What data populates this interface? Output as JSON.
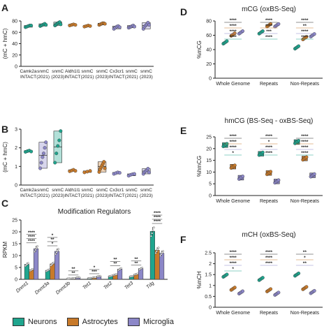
{
  "legend": {
    "items": [
      {
        "label": "Neurons",
        "color": "#1fa58e"
      },
      {
        "label": "Astrocytes",
        "color": "#c87a2a"
      },
      {
        "label": "Microglia",
        "color": "#8c87c8"
      }
    ]
  },
  "chart_data": [
    {
      "panel": "A",
      "type": "scatter",
      "ylabel": "(mC + hmC)",
      "ylim": [
        0,
        80
      ],
      "yticks": [
        0,
        20,
        40,
        60,
        80
      ],
      "categories": [
        {
          "label": [
            "Camk2a",
            "INTACT"
          ],
          "color": "#1fa58e",
          "mean": 71,
          "points": [
            69,
            70,
            71,
            72,
            72
          ]
        },
        {
          "label": [
            "snmC",
            "(2021)"
          ],
          "color": "#1fa58e",
          "mean": 73,
          "points": [
            71,
            72,
            73,
            74,
            75,
            73
          ]
        },
        {
          "label": [
            "snmC",
            "(2023)"
          ],
          "color": "#1fa58e",
          "mean": 75,
          "points": [
            72,
            73,
            75,
            76,
            77,
            78,
            74
          ]
        },
        {
          "label": [
            "Aldh1l1",
            "INTACT"
          ],
          "color": "#c87a2a",
          "mean": 73,
          "points": [
            72,
            73,
            74,
            73
          ]
        },
        {
          "label": [
            "snmC",
            "(2021)"
          ],
          "color": "#c87a2a",
          "mean": 71,
          "points": [
            70,
            71,
            72,
            71
          ]
        },
        {
          "label": [
            "snmC",
            "(2023)"
          ],
          "color": "#c87a2a",
          "mean": 75,
          "points": [
            73,
            74,
            75,
            76,
            76,
            75
          ]
        },
        {
          "label": [
            "Cx3cr1",
            "INTACT"
          ],
          "color": "#8c87c8",
          "mean": 69,
          "points": [
            66,
            68,
            70,
            71,
            69
          ]
        },
        {
          "label": [
            "snmC",
            "(2021)"
          ],
          "color": "#8c87c8",
          "mean": 70,
          "points": [
            68,
            69,
            70,
            71,
            72,
            70
          ]
        },
        {
          "label": [
            "snmC",
            "(2023)"
          ],
          "color": "#8c87c8",
          "mean": 72,
          "points": [
            66,
            70,
            72,
            74,
            77,
            73
          ]
        }
      ]
    },
    {
      "panel": "B",
      "type": "scatter",
      "ylabel": "(mC + hmC)",
      "ylim": [
        0,
        3
      ],
      "yticks": [
        0,
        1,
        2,
        3
      ],
      "categories": [
        {
          "label": [
            "Camk2a",
            "INTACT"
          ],
          "color": "#1fa58e",
          "mean": 1.82,
          "points": [
            1.78,
            1.82,
            1.85,
            1.8
          ]
        },
        {
          "label": [
            "snmC",
            "(2021)"
          ],
          "color": "#8c87c8",
          "mean": 1.6,
          "points": [
            0.9,
            1.2,
            1.5,
            1.7,
            2.0,
            2.3
          ]
        },
        {
          "label": [
            "snmC",
            "(2023)"
          ],
          "color": "#1fa58e",
          "mean": 2.05,
          "points": [
            1.2,
            1.7,
            2.1,
            2.4,
            2.9
          ]
        },
        {
          "label": [
            "Aldh1l1",
            "INTACT"
          ],
          "color": "#c87a2a",
          "mean": 0.78,
          "points": [
            0.74,
            0.78,
            0.82,
            0.76
          ]
        },
        {
          "label": [
            "snmC",
            "(2021)"
          ],
          "color": "#c87a2a",
          "mean": 0.72,
          "points": [
            0.68,
            0.72,
            0.76
          ]
        },
        {
          "label": [
            "snmC",
            "(2023)"
          ],
          "color": "#c87a2a",
          "mean": 1.0,
          "points": [
            0.7,
            0.85,
            0.95,
            1.05,
            1.15,
            1.25,
            0.9
          ]
        },
        {
          "label": [
            "Cx3cr1",
            "INTACT"
          ],
          "color": "#8c87c8",
          "mean": 0.65,
          "points": [
            0.6,
            0.64,
            0.68,
            0.66
          ]
        },
        {
          "label": [
            "snmC",
            "(2021)"
          ],
          "color": "#8c87c8",
          "mean": 0.55,
          "points": [
            0.5,
            0.55,
            0.58,
            0.6
          ]
        },
        {
          "label": [
            "snmC",
            "(2023)"
          ],
          "color": "#8c87c8",
          "mean": 0.75,
          "points": [
            0.6,
            0.7,
            0.75,
            0.8,
            0.88,
            0.68
          ]
        }
      ]
    },
    {
      "panel": "C",
      "type": "bar",
      "title": "Modification Regulators",
      "ylabel": "RPKM",
      "ylim": [
        0,
        25
      ],
      "yticks": [
        0,
        5,
        10,
        15,
        20,
        25
      ],
      "categories": [
        "Dnmt1",
        "Dnmt3a",
        "Dnmt3b",
        "Tet1",
        "Tet2",
        "Tet3",
        "Tdg"
      ],
      "series": [
        {
          "name": "Neurons",
          "color": "#1fa58e",
          "values": [
            6.3,
            3.8,
            0.3,
            0.5,
            1.4,
            1.3,
            20.2
          ]
        },
        {
          "name": "Astrocytes",
          "color": "#c87a2a",
          "values": [
            4.0,
            6.5,
            0.4,
            0.8,
            2.0,
            2.2,
            12.3
          ]
        },
        {
          "name": "Microglia",
          "color": "#8c87c8",
          "values": [
            12.9,
            11.8,
            0.8,
            1.3,
            4.3,
            4.5,
            11.0
          ]
        }
      ],
      "significance": [
        {
          "cat": 0,
          "bars": [
            "****",
            "****",
            "****"
          ]
        },
        {
          "cat": 1,
          "bars": [
            "*",
            "**",
            "*"
          ]
        },
        {
          "cat": 2,
          "bars": [
            "**",
            "**"
          ]
        },
        {
          "cat": 3,
          "bars": [
            "***",
            "*"
          ]
        },
        {
          "cat": 4,
          "bars": [
            "**",
            "**"
          ]
        },
        {
          "cat": 5,
          "bars": [
            "**",
            "**"
          ]
        },
        {
          "cat": 6,
          "bars": [
            "****",
            "****",
            "****"
          ]
        }
      ]
    },
    {
      "panel": "D",
      "type": "scatter",
      "title": "mCG (oxBS-Seq)",
      "ylabel": "%mCG",
      "ylim": [
        0,
        80
      ],
      "yticks": [
        0,
        20,
        40,
        60,
        80
      ],
      "groups": [
        "Whole Genome",
        "Repeats",
        "Non-Repeats"
      ],
      "series": [
        {
          "name": "Neurons",
          "color": "#1fa58e",
          "values": [
            50,
            64,
            43
          ]
        },
        {
          "name": "Astrocytes",
          "color": "#c87a2a",
          "values": [
            61,
            74,
            56
          ]
        },
        {
          "name": "Microglia",
          "color": "#8c87c8",
          "values": [
            64,
            74,
            60
          ]
        }
      ],
      "significance": [
        "****",
        "****",
        "****",
        "****",
        "****",
        "**",
        "****",
        "***",
        "****",
        "****",
        "****",
        "****"
      ]
    },
    {
      "panel": "E",
      "type": "box",
      "title": "hmCG (BS-Seq - oxBS-Seq)",
      "ylabel": "%hmCG",
      "ylim": [
        0,
        25
      ],
      "yticks": [
        0,
        5,
        10,
        15,
        20,
        25
      ],
      "groups": [
        "Whole Genome",
        "Repeats",
        "Non-Repeats"
      ],
      "series": [
        {
          "name": "Neurons",
          "color": "#1fa58e",
          "values": [
            21.5,
            17.8,
            22.8
          ]
        },
        {
          "name": "Astrocytes",
          "color": "#c87a2a",
          "values": [
            12.3,
            9.6,
            15.8
          ]
        },
        {
          "name": "Microglia",
          "color": "#8c87c8",
          "values": [
            7.6,
            6.0,
            8.6
          ]
        }
      ],
      "significance": [
        "****",
        "****",
        "****",
        "****",
        "*",
        "****",
        "****",
        "****",
        "****",
        "*",
        "****",
        "****"
      ]
    },
    {
      "panel": "F",
      "type": "scatter",
      "title": "mCH (oxBS-Seq)",
      "ylabel": "%mCH",
      "ylim": [
        0,
        2.5
      ],
      "yticks": [
        0,
        0.5,
        1.0,
        1.5,
        2.0,
        2.5
      ],
      "groups": [
        "Whole Genome",
        "Repeats",
        "Non-Repeats"
      ],
      "series": [
        {
          "name": "Neurons",
          "color": "#1fa58e",
          "values": [
            1.45,
            1.3,
            1.5
          ]
        },
        {
          "name": "Astrocytes",
          "color": "#c87a2a",
          "values": [
            0.85,
            0.78,
            0.88
          ]
        },
        {
          "name": "Microglia",
          "color": "#8c87c8",
          "values": [
            0.68,
            0.62,
            0.7
          ]
        }
      ],
      "significance": [
        "****",
        "****",
        "**",
        "****",
        "****",
        "*",
        "****",
        "****",
        "**",
        "*"
      ]
    }
  ]
}
